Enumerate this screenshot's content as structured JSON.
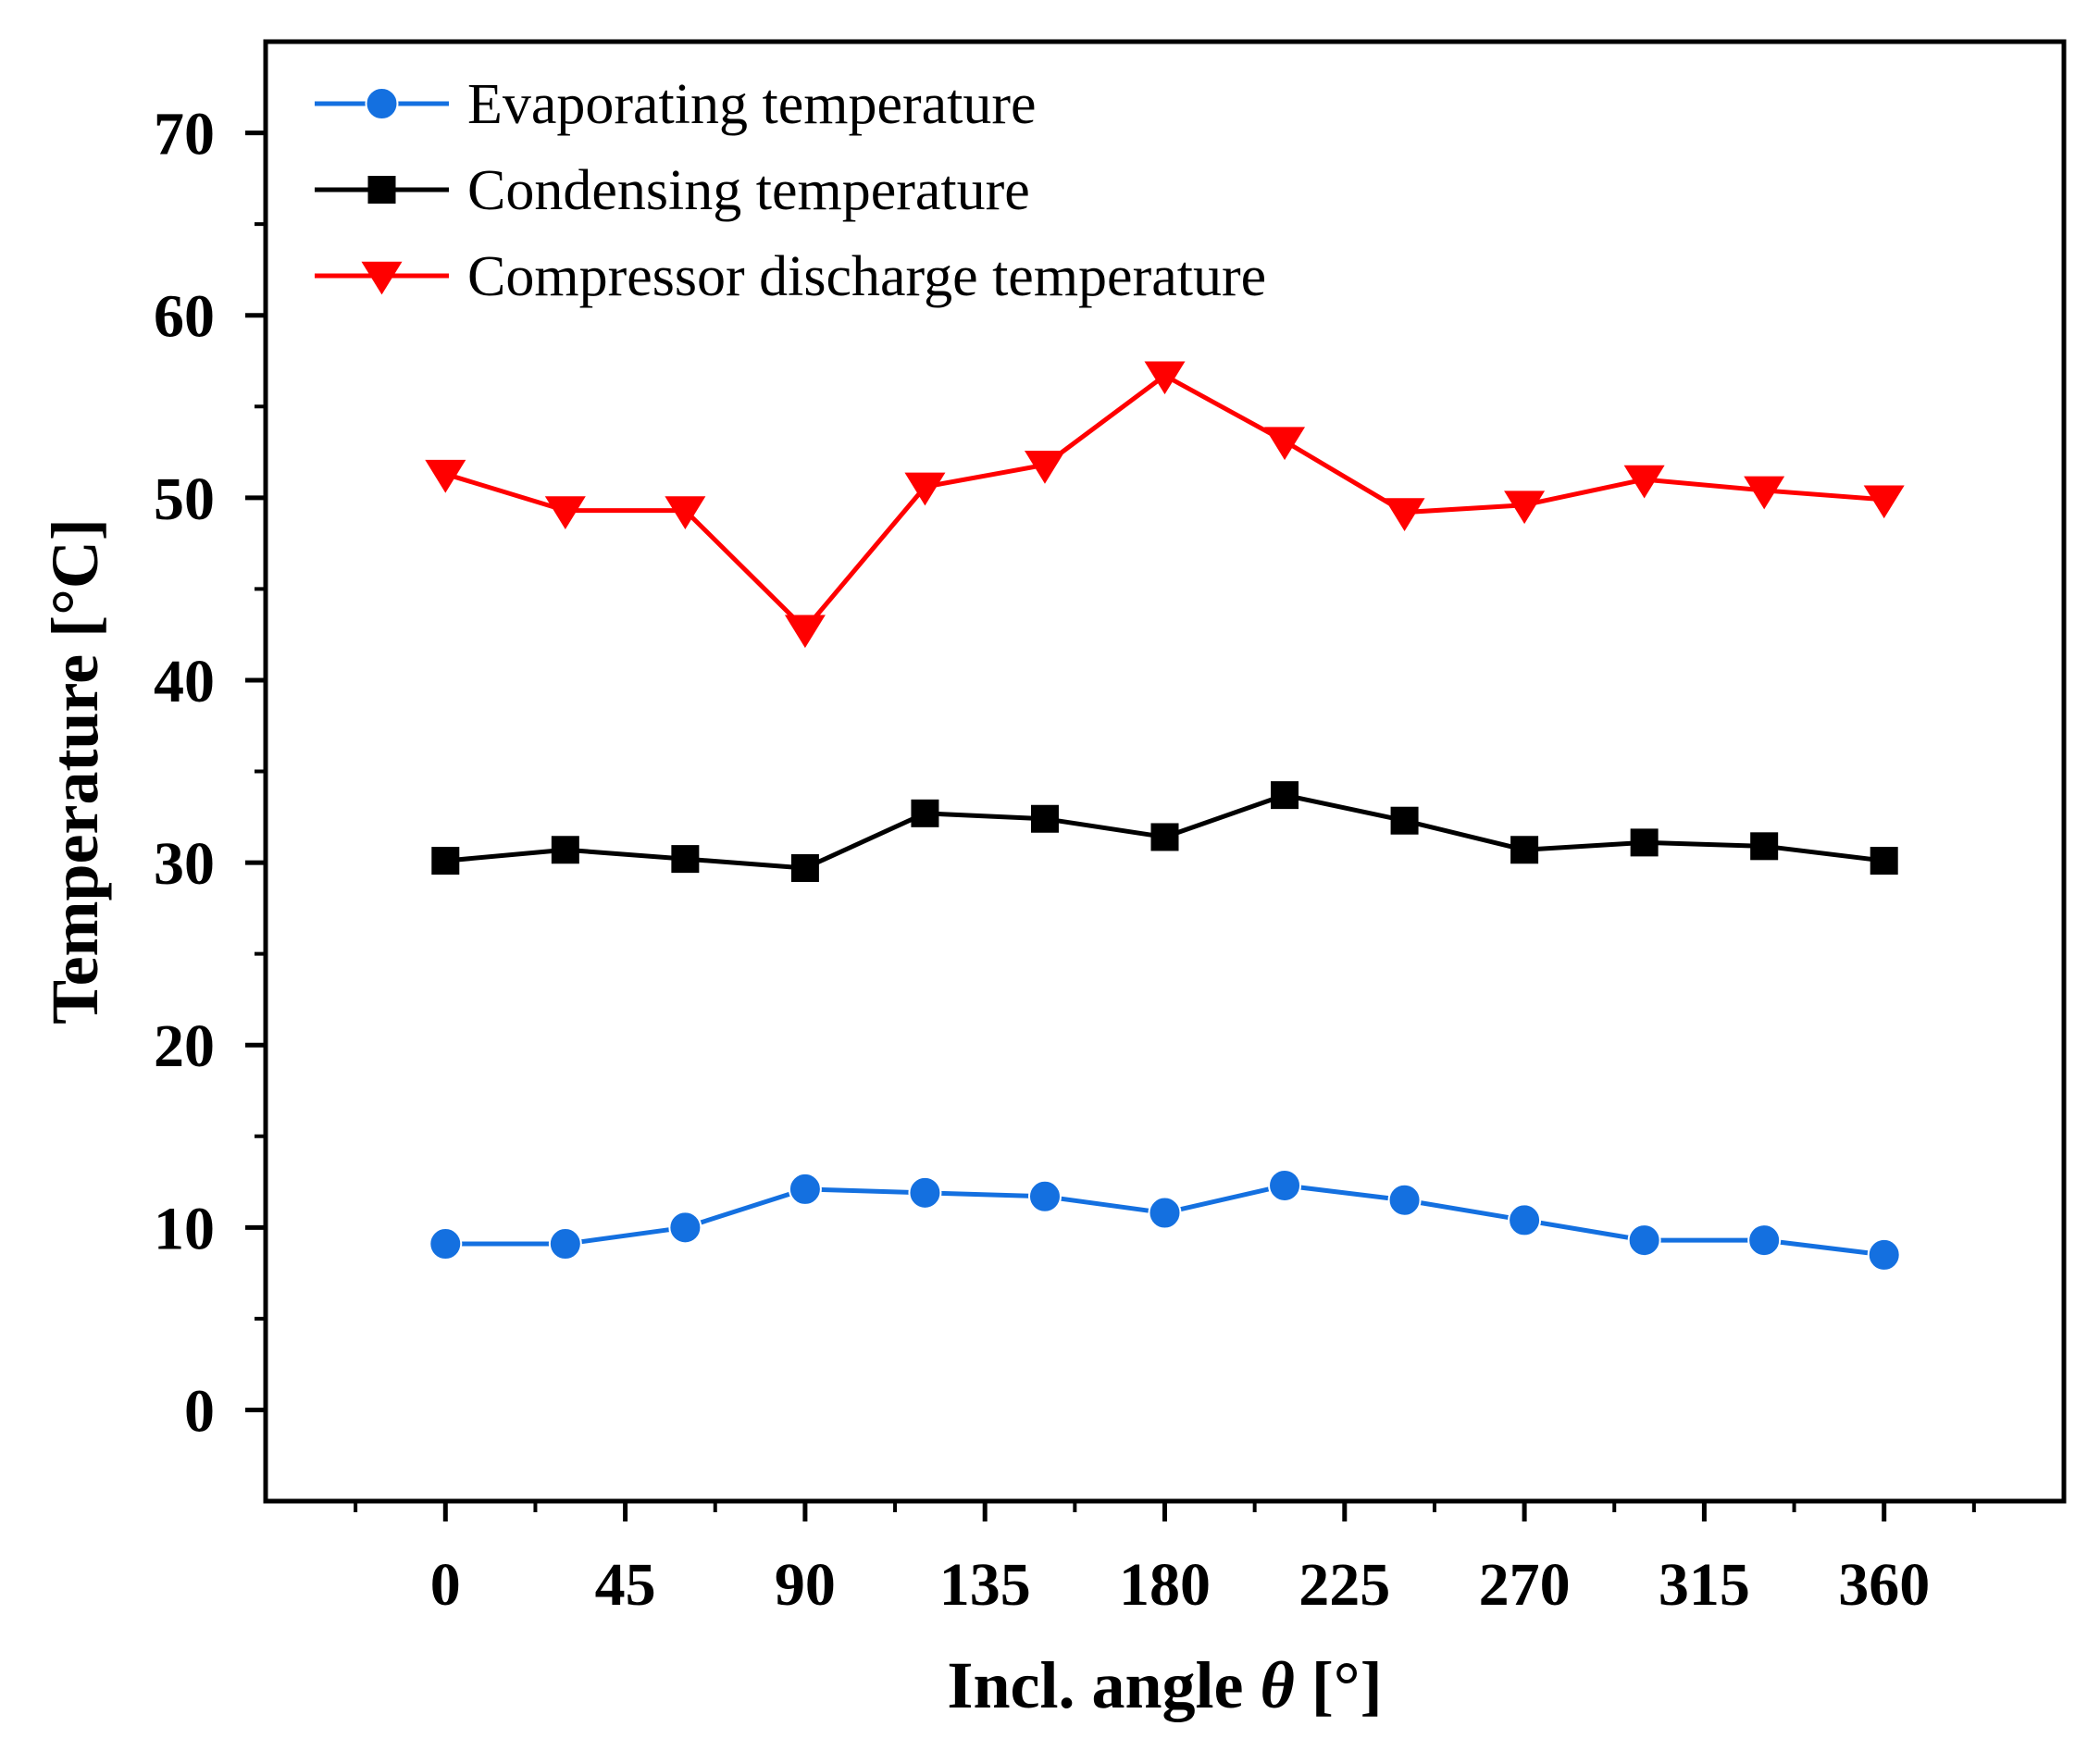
{
  "chart_data": {
    "type": "line",
    "xlabel_prefix": "Incl. angle ",
    "xlabel_symbol": "θ",
    "xlabel_suffix": " [°]",
    "ylabel": "Temperature [°C]",
    "xlim": [
      -45,
      405
    ],
    "ylim": [
      -5,
      75
    ],
    "x_ticks": [
      0,
      45,
      90,
      135,
      180,
      225,
      270,
      315,
      360
    ],
    "x_tick_labels": [
      "0",
      "45",
      "90",
      "135",
      "180",
      "225",
      "270",
      "315",
      "360"
    ],
    "y_ticks": [
      0,
      10,
      20,
      30,
      40,
      50,
      60,
      70
    ],
    "y_tick_labels": [
      "0",
      "10",
      "20",
      "30",
      "40",
      "50",
      "60",
      "70"
    ],
    "grid": false,
    "legend_position": "top-left",
    "x": [
      0,
      30,
      60,
      90,
      120,
      150,
      180,
      210,
      240,
      270,
      300,
      330,
      360
    ],
    "series": [
      {
        "name": "Evaporating temperature",
        "color": "#1470E0",
        "marker": "circle",
        "values": [
          9.1,
          9.1,
          10.0,
          12.1,
          11.9,
          11.7,
          10.8,
          12.3,
          11.5,
          10.4,
          9.3,
          9.3,
          8.5
        ]
      },
      {
        "name": "Condensing temperature",
        "color": "#000000",
        "marker": "square",
        "values": [
          30.1,
          30.7,
          30.2,
          29.7,
          32.7,
          32.4,
          31.4,
          33.7,
          32.3,
          30.7,
          31.1,
          30.9,
          30.1
        ]
      },
      {
        "name": "Compressor discharge temperature",
        "color": "#FF0000",
        "marker": "triangle-down",
        "values": [
          51.3,
          49.3,
          49.3,
          42.8,
          50.6,
          51.8,
          56.7,
          53.1,
          49.2,
          49.6,
          51.0,
          50.4,
          49.9
        ]
      }
    ]
  }
}
